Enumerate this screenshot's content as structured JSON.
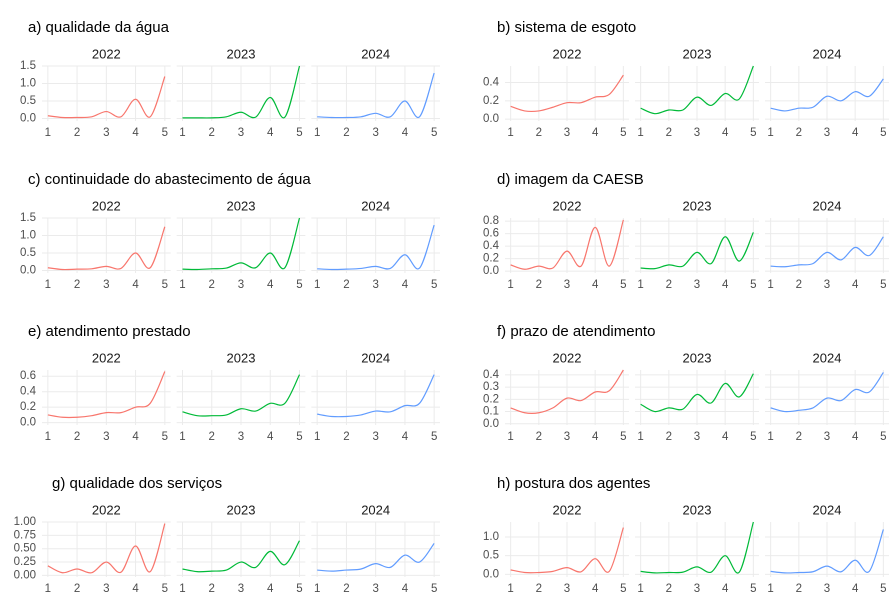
{
  "chart_data": [
    {
      "type": "line",
      "title": "a) qualidade da água",
      "x": [
        1,
        1.5,
        2,
        2.5,
        3,
        3.5,
        4,
        4.5,
        5
      ],
      "xlim": [
        0.8,
        5.2
      ],
      "xticks": [
        1,
        2,
        3,
        4,
        5
      ],
      "ylim": [
        -0.07,
        1.5
      ],
      "yticks": [
        {
          "value": 0,
          "label": "0.0"
        },
        0.5,
        {
          "value": 1,
          "label": "1.0"
        },
        1.5
      ],
      "grid": true,
      "series": [
        {
          "name": "2022",
          "color": "#F8766D",
          "values": [
            0.08,
            0.03,
            0.03,
            0.05,
            0.2,
            0.05,
            0.55,
            0.05,
            1.2
          ]
        },
        {
          "name": "2023",
          "color": "#00BA38",
          "values": [
            0.02,
            0.02,
            0.02,
            0.05,
            0.18,
            0.04,
            0.6,
            0.04,
            1.5
          ]
        },
        {
          "name": "2024",
          "color": "#619CFF",
          "values": [
            0.05,
            0.03,
            0.03,
            0.05,
            0.15,
            0.05,
            0.5,
            0.05,
            1.3
          ]
        }
      ]
    },
    {
      "type": "line",
      "title": "b) sistema de esgoto",
      "x": [
        1,
        1.5,
        2,
        2.5,
        3,
        3.5,
        4,
        4.5,
        5
      ],
      "xlim": [
        0.8,
        5.2
      ],
      "xticks": [
        1,
        2,
        3,
        4,
        5
      ],
      "ylim": [
        -0.02,
        0.58
      ],
      "yticks": [
        {
          "value": 0,
          "label": "0.0"
        },
        0.2,
        0.4
      ],
      "grid": true,
      "series": [
        {
          "name": "2022",
          "color": "#F8766D",
          "values": [
            0.14,
            0.09,
            0.09,
            0.13,
            0.18,
            0.18,
            0.24,
            0.27,
            0.48
          ]
        },
        {
          "name": "2023",
          "color": "#00BA38",
          "values": [
            0.12,
            0.06,
            0.1,
            0.1,
            0.24,
            0.15,
            0.28,
            0.22,
            0.58
          ]
        },
        {
          "name": "2024",
          "color": "#619CFF",
          "values": [
            0.12,
            0.09,
            0.12,
            0.13,
            0.25,
            0.2,
            0.3,
            0.25,
            0.44
          ]
        }
      ]
    },
    {
      "type": "line",
      "title": "c) continuidade do abastecimento de água",
      "x": [
        1,
        1.5,
        2,
        2.5,
        3,
        3.5,
        4,
        4.5,
        5
      ],
      "xlim": [
        0.8,
        5.2
      ],
      "xticks": [
        1,
        2,
        3,
        4,
        5
      ],
      "ylim": [
        -0.07,
        1.5
      ],
      "yticks": [
        {
          "value": 0,
          "label": "0.0"
        },
        0.5,
        {
          "value": 1,
          "label": "1.0"
        },
        1.5
      ],
      "grid": true,
      "series": [
        {
          "name": "2022",
          "color": "#F8766D",
          "values": [
            0.08,
            0.03,
            0.04,
            0.05,
            0.12,
            0.06,
            0.5,
            0.08,
            1.25
          ]
        },
        {
          "name": "2023",
          "color": "#00BA38",
          "values": [
            0.04,
            0.03,
            0.05,
            0.07,
            0.22,
            0.08,
            0.5,
            0.08,
            1.5
          ]
        },
        {
          "name": "2024",
          "color": "#619CFF",
          "values": [
            0.05,
            0.03,
            0.04,
            0.06,
            0.12,
            0.06,
            0.45,
            0.07,
            1.3
          ]
        }
      ]
    },
    {
      "type": "line",
      "title": "d) imagem da CAESB",
      "x": [
        1,
        1.5,
        2,
        2.5,
        3,
        3.5,
        4,
        4.5,
        5
      ],
      "xlim": [
        0.8,
        5.2
      ],
      "xticks": [
        1,
        2,
        3,
        4,
        5
      ],
      "ylim": [
        -0.03,
        0.85
      ],
      "yticks": [
        {
          "value": 0,
          "label": "0.0"
        },
        0.2,
        0.4,
        0.6,
        0.8
      ],
      "grid": true,
      "series": [
        {
          "name": "2022",
          "color": "#F8766D",
          "values": [
            0.1,
            0.03,
            0.08,
            0.05,
            0.32,
            0.08,
            0.7,
            0.08,
            0.82
          ]
        },
        {
          "name": "2023",
          "color": "#00BA38",
          "values": [
            0.05,
            0.04,
            0.1,
            0.08,
            0.3,
            0.12,
            0.55,
            0.16,
            0.62
          ]
        },
        {
          "name": "2024",
          "color": "#619CFF",
          "values": [
            0.08,
            0.07,
            0.1,
            0.12,
            0.3,
            0.18,
            0.38,
            0.25,
            0.55
          ]
        }
      ]
    },
    {
      "type": "line",
      "title": "e) atendimento prestado",
      "x": [
        1,
        1.5,
        2,
        2.5,
        3,
        3.5,
        4,
        4.5,
        5
      ],
      "xlim": [
        0.8,
        5.2
      ],
      "xticks": [
        1,
        2,
        3,
        4,
        5
      ],
      "ylim": [
        -0.03,
        0.68
      ],
      "yticks": [
        {
          "value": 0,
          "label": "0.0"
        },
        0.2,
        0.4,
        0.6
      ],
      "grid": true,
      "series": [
        {
          "name": "2022",
          "color": "#F8766D",
          "values": [
            0.1,
            0.07,
            0.07,
            0.09,
            0.13,
            0.13,
            0.2,
            0.25,
            0.66
          ]
        },
        {
          "name": "2023",
          "color": "#00BA38",
          "values": [
            0.14,
            0.09,
            0.09,
            0.1,
            0.18,
            0.15,
            0.25,
            0.25,
            0.62
          ]
        },
        {
          "name": "2024",
          "color": "#619CFF",
          "values": [
            0.11,
            0.08,
            0.08,
            0.1,
            0.15,
            0.14,
            0.22,
            0.25,
            0.62
          ]
        }
      ]
    },
    {
      "type": "line",
      "title": "f) prazo de atendimento",
      "x": [
        1,
        1.5,
        2,
        2.5,
        3,
        3.5,
        4,
        4.5,
        5
      ],
      "xlim": [
        0.8,
        5.2
      ],
      "xticks": [
        1,
        2,
        3,
        4,
        5
      ],
      "ylim": [
        -0.01,
        0.44
      ],
      "yticks": [
        {
          "value": 0,
          "label": "0.0"
        },
        0.1,
        0.2,
        0.3,
        0.4
      ],
      "grid": true,
      "series": [
        {
          "name": "2022",
          "color": "#F8766D",
          "values": [
            0.13,
            0.09,
            0.09,
            0.13,
            0.21,
            0.19,
            0.26,
            0.27,
            0.44
          ]
        },
        {
          "name": "2023",
          "color": "#00BA38",
          "values": [
            0.16,
            0.1,
            0.13,
            0.12,
            0.24,
            0.17,
            0.33,
            0.22,
            0.41
          ]
        },
        {
          "name": "2024",
          "color": "#619CFF",
          "values": [
            0.13,
            0.1,
            0.11,
            0.13,
            0.21,
            0.19,
            0.28,
            0.26,
            0.42
          ]
        }
      ]
    },
    {
      "type": "line",
      "title": "g) qualidade dos serviços",
      "x": [
        1,
        1.5,
        2,
        2.5,
        3,
        3.5,
        4,
        4.5,
        5
      ],
      "xlim": [
        0.8,
        5.2
      ],
      "xticks": [
        1,
        2,
        3,
        4,
        5
      ],
      "ylim": [
        -0.03,
        1.0
      ],
      "yticks": [
        {
          "value": 0,
          "label": "0.00"
        },
        0.25,
        {
          "value": 0.5,
          "label": "0.50"
        },
        0.75,
        {
          "value": 1,
          "label": "1.00"
        }
      ],
      "grid": true,
      "series": [
        {
          "name": "2022",
          "color": "#F8766D",
          "values": [
            0.18,
            0.05,
            0.12,
            0.05,
            0.25,
            0.06,
            0.55,
            0.07,
            0.97
          ]
        },
        {
          "name": "2023",
          "color": "#00BA38",
          "values": [
            0.12,
            0.07,
            0.08,
            0.1,
            0.25,
            0.15,
            0.45,
            0.2,
            0.65
          ]
        },
        {
          "name": "2024",
          "color": "#619CFF",
          "values": [
            0.1,
            0.08,
            0.1,
            0.12,
            0.22,
            0.15,
            0.38,
            0.25,
            0.6
          ]
        }
      ]
    },
    {
      "type": "line",
      "title": "h) postura dos agentes",
      "x": [
        1,
        1.5,
        2,
        2.5,
        3,
        3.5,
        4,
        4.5,
        5
      ],
      "xlim": [
        0.8,
        5.2
      ],
      "xticks": [
        1,
        2,
        3,
        4,
        5
      ],
      "ylim": [
        -0.07,
        1.4
      ],
      "yticks": [
        {
          "value": 0,
          "label": "0.0"
        },
        0.5,
        {
          "value": 1,
          "label": "1.0"
        }
      ],
      "grid": true,
      "series": [
        {
          "name": "2022",
          "color": "#F8766D",
          "values": [
            0.12,
            0.05,
            0.05,
            0.08,
            0.18,
            0.07,
            0.42,
            0.08,
            1.25
          ]
        },
        {
          "name": "2023",
          "color": "#00BA38",
          "values": [
            0.08,
            0.04,
            0.05,
            0.06,
            0.2,
            0.06,
            0.5,
            0.06,
            1.4
          ]
        },
        {
          "name": "2024",
          "color": "#619CFF",
          "values": [
            0.08,
            0.04,
            0.05,
            0.07,
            0.22,
            0.07,
            0.38,
            0.08,
            1.2
          ]
        }
      ]
    }
  ]
}
